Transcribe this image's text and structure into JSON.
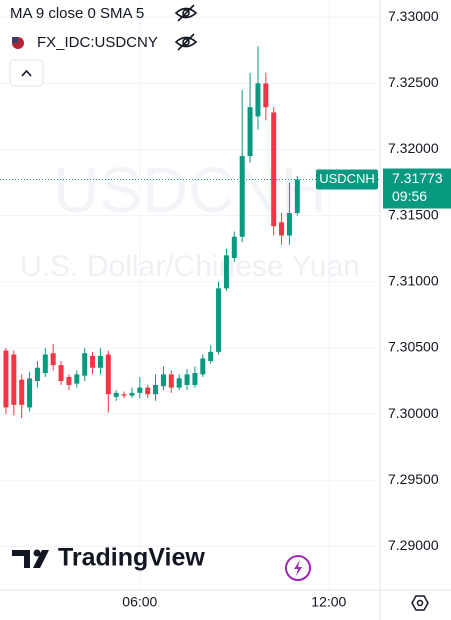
{
  "chart_data": {
    "type": "candlestick",
    "indicator": "MA 9 close 0 SMA 5",
    "compare_symbol": "FX_IDC:USDCNY",
    "symbol": "USDCNH",
    "description": "U.S. Dollar/Chinese Yuan",
    "countdown": "09:56",
    "brand": "TradingView",
    "up_color": "#089981",
    "down_color": "#f23645",
    "categories": [
      null,
      null,
      null,
      null,
      null,
      null,
      null,
      null,
      null,
      null,
      null,
      null,
      null,
      null,
      null,
      null,
      null,
      "06:00",
      null,
      null,
      null,
      null,
      null,
      null,
      null,
      null,
      null,
      null,
      null,
      null,
      null,
      null,
      null,
      null,
      null,
      null,
      null,
      null,
      null,
      null,
      null,
      "12:00",
      null,
      null,
      null,
      null,
      null,
      null
    ],
    "open": [
      7.3048,
      7.3045,
      7.3026,
      7.3005,
      7.3025,
      7.3031,
      7.3046,
      7.3037,
      7.3028,
      7.3023,
      7.3029,
      7.3044,
      7.3035,
      7.3045,
      7.3013,
      7.3015,
      7.3014,
      7.3016,
      7.302,
      7.3015,
      7.3021,
      7.303,
      7.302,
      7.3022,
      7.3022,
      7.303,
      7.304,
      7.3047,
      7.3095,
      7.3118,
      7.3134,
      7.3195,
      7.3225,
      7.325,
      7.3228,
      7.3145,
      7.3135,
      7.3152,
      null,
      null,
      null,
      null,
      null,
      null,
      null,
      null,
      null,
      null
    ],
    "high": [
      7.305,
      7.3048,
      7.303,
      7.3032,
      7.304,
      7.305,
      7.3053,
      7.304,
      7.303,
      7.3033,
      7.305,
      7.3047,
      7.305,
      7.3048,
      7.3018,
      7.3017,
      7.302,
      7.3028,
      7.3022,
      7.303,
      7.3036,
      7.3033,
      7.303,
      7.3034,
      7.3036,
      7.3045,
      7.3052,
      7.31,
      7.3125,
      7.3138,
      7.3245,
      7.3258,
      7.3278,
      7.3258,
      7.3232,
      7.3152,
      7.3175,
      7.318,
      null,
      null,
      null,
      null,
      null,
      null,
      null,
      null,
      null,
      null
    ],
    "low": [
      7.3,
      7.2999,
      7.2997,
      7.3002,
      7.302,
      7.3028,
      7.3033,
      7.3022,
      7.3018,
      7.302,
      7.3025,
      7.303,
      7.303,
      7.3001,
      7.301,
      7.3012,
      7.3012,
      7.3012,
      7.3012,
      7.301,
      7.3018,
      7.3016,
      7.3018,
      7.3018,
      7.302,
      7.3028,
      7.3038,
      7.3045,
      7.3093,
      7.3115,
      7.313,
      7.319,
      7.3215,
      7.3222,
      7.3135,
      7.3128,
      7.3128,
      7.315,
      null,
      null,
      null,
      null,
      null,
      null,
      null,
      null,
      null,
      null
    ],
    "close": [
      7.3005,
      7.3007,
      7.3007,
      7.3027,
      7.3035,
      7.3045,
      7.3037,
      7.3025,
      7.3022,
      7.303,
      7.3046,
      7.3035,
      7.3044,
      7.3015,
      7.3016,
      7.3014,
      7.3016,
      7.302,
      7.3015,
      7.3022,
      7.303,
      7.302,
      7.3027,
      7.303,
      7.3031,
      7.3042,
      7.3047,
      7.3095,
      7.312,
      7.3134,
      7.3195,
      7.3232,
      7.325,
      7.3232,
      7.3142,
      7.3135,
      7.3152,
      7.31773,
      null,
      null,
      null,
      null,
      null,
      null,
      null,
      null,
      null,
      null
    ],
    "ylim": [
      7.2867,
      7.3313
    ],
    "yticks": [
      {
        "value": 7.29,
        "label": "7.29000"
      },
      {
        "value": 7.295,
        "label": "7.29500"
      },
      {
        "value": 7.3,
        "label": "7.30000"
      },
      {
        "value": 7.305,
        "label": "7.30500"
      },
      {
        "value": 7.31,
        "label": "7.31000"
      },
      {
        "value": 7.315,
        "label": "7.31500"
      },
      {
        "value": 7.32,
        "label": "7.32000"
      },
      {
        "value": 7.325,
        "label": "7.32500"
      },
      {
        "value": 7.33,
        "label": "7.33000"
      }
    ],
    "grid": true
  }
}
